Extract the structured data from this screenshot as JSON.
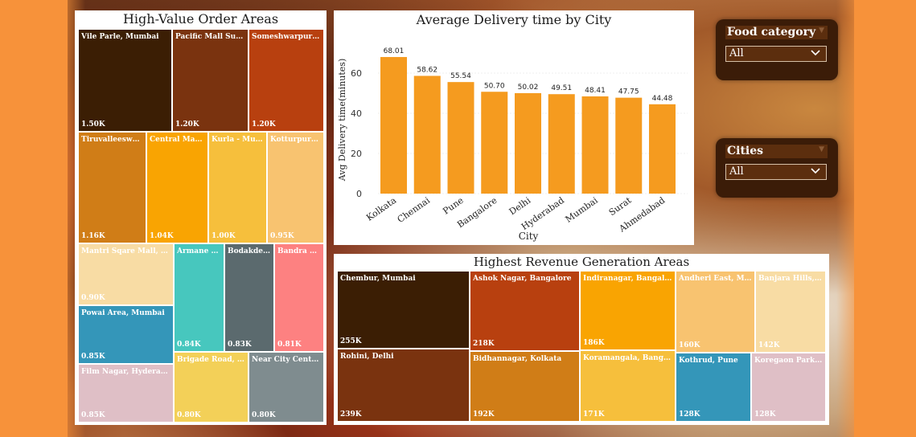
{
  "colors": {
    "page_bg": "#f7923a",
    "bar": "#f59b1f",
    "panel": "#ffffff"
  },
  "chart_data": [
    {
      "type": "treemap",
      "title": "High-Value Order Areas",
      "items": [
        {
          "name": "Vile Parle, Mumbai",
          "value_label": "1.50K",
          "value": 1.5,
          "color": "#3b1e04"
        },
        {
          "name": "Pacific Mall Subha...",
          "value_label": "1.20K",
          "value": 1.2,
          "color": "#7a330f"
        },
        {
          "name": "Someshwarpura, B...",
          "value_label": "1.20K",
          "value": 1.2,
          "color": "#b8400f"
        },
        {
          "name": "Tiruvalleeswara...",
          "value_label": "1.16K",
          "value": 1.16,
          "color": "#d07d17"
        },
        {
          "name": "Central Market...",
          "value_label": "1.04K",
          "value": 1.04,
          "color": "#f9a402"
        },
        {
          "name": "Kurla - Mumb...",
          "value_label": "1.00K",
          "value": 1.0,
          "color": "#f6bf3c"
        },
        {
          "name": "Kotturpuram...",
          "value_label": "0.95K",
          "value": 0.95,
          "color": "#f8c370"
        },
        {
          "name": "Mantri Sqare Mall, Bang...",
          "value_label": "0.90K",
          "value": 0.9,
          "color": "#f8dca4"
        },
        {
          "name": "Armane Na...",
          "value_label": "0.84K",
          "value": 0.84,
          "color": "#47c7be"
        },
        {
          "name": "Bodakdev, ...",
          "value_label": "0.83K",
          "value": 0.83,
          "color": "#5b6a6e"
        },
        {
          "name": "Bandra Ar...",
          "value_label": "0.81K",
          "value": 0.81,
          "color": "#fd8181"
        },
        {
          "name": "Powai Area, Mumbai",
          "value_label": "0.85K",
          "value": 0.85,
          "color": "#3496b9"
        },
        {
          "name": "Film Nagar, Hyderabad",
          "value_label": "0.85K",
          "value": 0.85,
          "color": "#dfbfc6"
        },
        {
          "name": "Brigade Road, Ban...",
          "value_label": "0.80K",
          "value": 0.8,
          "color": "#f3d058"
        },
        {
          "name": "Near City Centre 1 ...",
          "value_label": "0.80K",
          "value": 0.8,
          "color": "#7f8c8f"
        }
      ]
    },
    {
      "type": "bar",
      "title": "Average Delivery time by City",
      "xlabel": "City",
      "ylabel": "Avg Delivery time(minutes)",
      "categories": [
        "Kolkata",
        "Chennai",
        "Pune",
        "Bangalore",
        "Delhi",
        "Hyderabad",
        "Mumbai",
        "Surat",
        "Ahmedabad"
      ],
      "values": [
        68.01,
        58.62,
        55.54,
        50.7,
        50.02,
        49.51,
        48.41,
        47.75,
        44.48
      ],
      "value_labels": [
        "68.01",
        "58.62",
        "55.54",
        "50.70",
        "50.02",
        "49.51",
        "48.41",
        "47.75",
        "44.48"
      ],
      "yticks": [
        "0",
        "20",
        "40",
        "60"
      ],
      "ylim": [
        0,
        70
      ],
      "grid": false
    },
    {
      "type": "treemap",
      "title": "Highest Revenue Generation Areas",
      "items": [
        {
          "name": "Chembur, Mumbai",
          "value_label": "255K",
          "value": 255,
          "color": "#3b1e04"
        },
        {
          "name": "Rohini, Delhi",
          "value_label": "239K",
          "value": 239,
          "color": "#7a330f"
        },
        {
          "name": "Ashok Nagar, Bangalore",
          "value_label": "218K",
          "value": 218,
          "color": "#b8400f"
        },
        {
          "name": "Bidhannagar, Kolkata",
          "value_label": "192K",
          "value": 192,
          "color": "#d07d17"
        },
        {
          "name": "Indiranagar, Bangalore",
          "value_label": "186K",
          "value": 186,
          "color": "#f9a402"
        },
        {
          "name": "Koramangala, Bangalore",
          "value_label": "171K",
          "value": 171,
          "color": "#f6bf3c"
        },
        {
          "name": "Andheri East, Mum...",
          "value_label": "160K",
          "value": 160,
          "color": "#f8c370"
        },
        {
          "name": "Banjara Hills, Hy...",
          "value_label": "142K",
          "value": 142,
          "color": "#f8dca4"
        },
        {
          "name": "Kothrud, Pune",
          "value_label": "128K",
          "value": 128,
          "color": "#3496b9"
        },
        {
          "name": "Koregaon Park, Pu...",
          "value_label": "128K",
          "value": 128,
          "color": "#dfbfc6"
        }
      ]
    }
  ],
  "slicers": {
    "food_category": {
      "title": "Food category",
      "selected": "All"
    },
    "cities": {
      "title": "Cities",
      "selected": "All"
    }
  }
}
